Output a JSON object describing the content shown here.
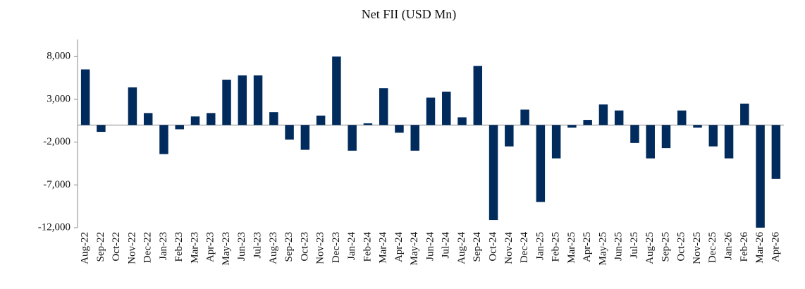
{
  "chart_data": {
    "type": "bar",
    "title": "Net FII  (USD Mn)",
    "categories": [
      "Aug-22",
      "Sep-22",
      "Oct-22",
      "Nov-22",
      "Dec-22",
      "Jan-23",
      "Feb-23",
      "Mar-23",
      "Apr-23",
      "May-23",
      "Jun-23",
      "Jul-23",
      "Aug-23",
      "Sep-23",
      "Oct-23",
      "Nov-23",
      "Dec-23",
      "Jan-24",
      "Feb-24",
      "Mar-24",
      "Apr-24",
      "May-24",
      "Jun-24",
      "Jul-24",
      "Aug-24",
      "Sep-24",
      "Oct-24",
      "Nov-24",
      "Dec-24",
      "Jan-25",
      "Feb-25",
      "Mar-25",
      "Apr-25",
      "May-25",
      "Jun-25",
      "Jul-25",
      "Aug-25",
      "Sep-25",
      "Oct-25",
      "Nov-25",
      "Dec-25",
      "Jan-26",
      "Feb-26",
      "Mar-26",
      "Apr-26"
    ],
    "values": [
      6500,
      -800,
      0,
      4400,
      1400,
      -3400,
      -500,
      1000,
      1400,
      5300,
      5800,
      5800,
      1500,
      -1700,
      -2900,
      1100,
      8000,
      -3000,
      200,
      4300,
      -900,
      -3000,
      3200,
      3900,
      900,
      6900,
      -11100,
      -2500,
      1800,
      -9000,
      -3900,
      -300,
      600,
      2400,
      1700,
      -2100,
      -3900,
      -2700,
      1700,
      -300,
      -2500,
      -3900,
      2500,
      -12000,
      -6300
    ],
    "color": "#002b5c",
    "ylim": [
      -12000,
      10000
    ],
    "yticks": [
      {
        "value": -12000,
        "label": "-12,000"
      },
      {
        "value": -7000,
        "label": "-7,000"
      },
      {
        "value": -2000,
        "label": "-2,000"
      },
      {
        "value": 3000,
        "label": "3,000"
      },
      {
        "value": 8000,
        "label": "8,000"
      }
    ],
    "grid": false
  }
}
